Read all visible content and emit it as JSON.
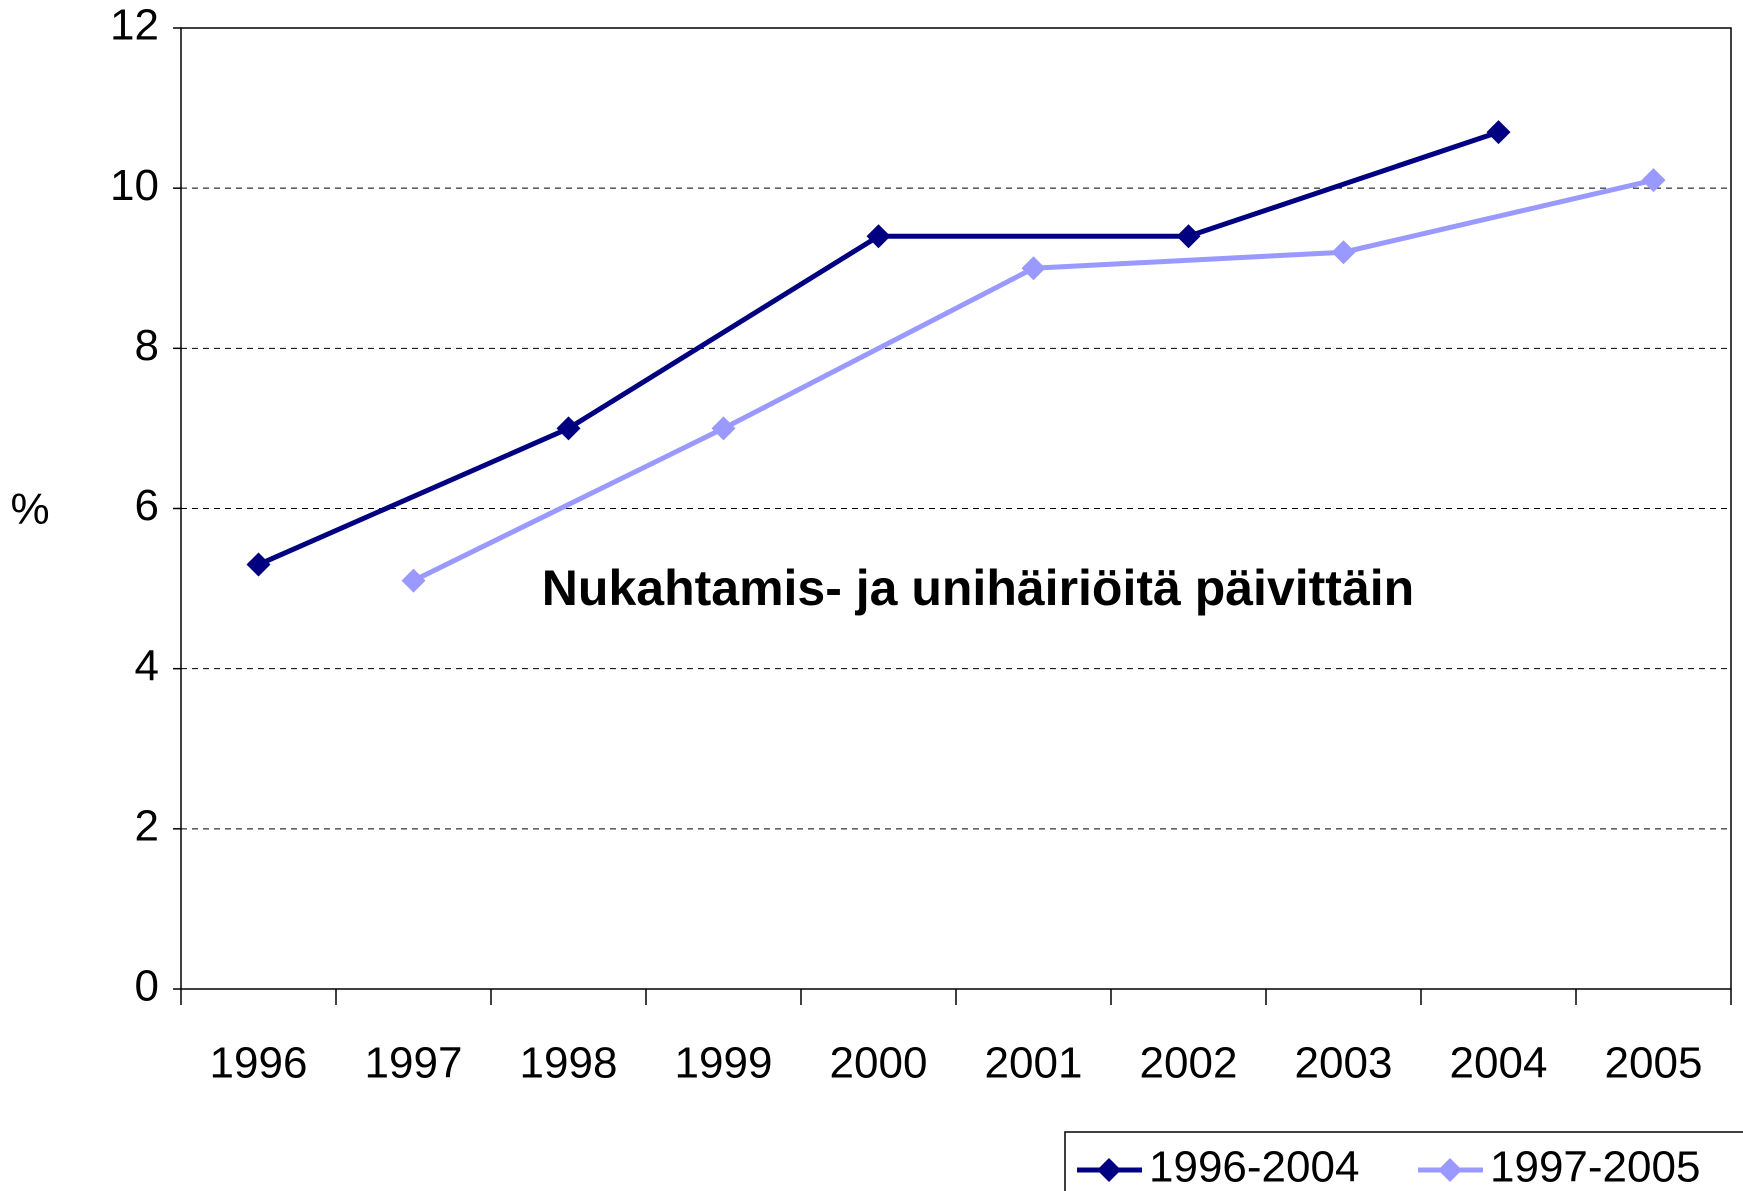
{
  "chart_data": {
    "type": "line",
    "title": "Nukahtamis- ja unihäiriöitä päivittäin",
    "y_label": "%",
    "categories": [
      1996,
      1997,
      1998,
      1999,
      2000,
      2001,
      2002,
      2003,
      2004,
      2005
    ],
    "series": [
      {
        "name": "1996-2004",
        "color": "#000080",
        "x": [
          1996,
          1998,
          2000,
          2002,
          2004
        ],
        "values": [
          5.3,
          7.0,
          9.4,
          9.4,
          10.7
        ]
      },
      {
        "name": "1997-2005",
        "color": "#9999ff",
        "x": [
          1997,
          1999,
          2001,
          2003,
          2005
        ],
        "values": [
          5.1,
          7.0,
          9.0,
          9.2,
          10.1
        ]
      }
    ],
    "ylim": [
      0,
      12
    ],
    "yticks": [
      0,
      2,
      4,
      6,
      8,
      10,
      12
    ],
    "grid": true,
    "legend": "bottom-right"
  }
}
